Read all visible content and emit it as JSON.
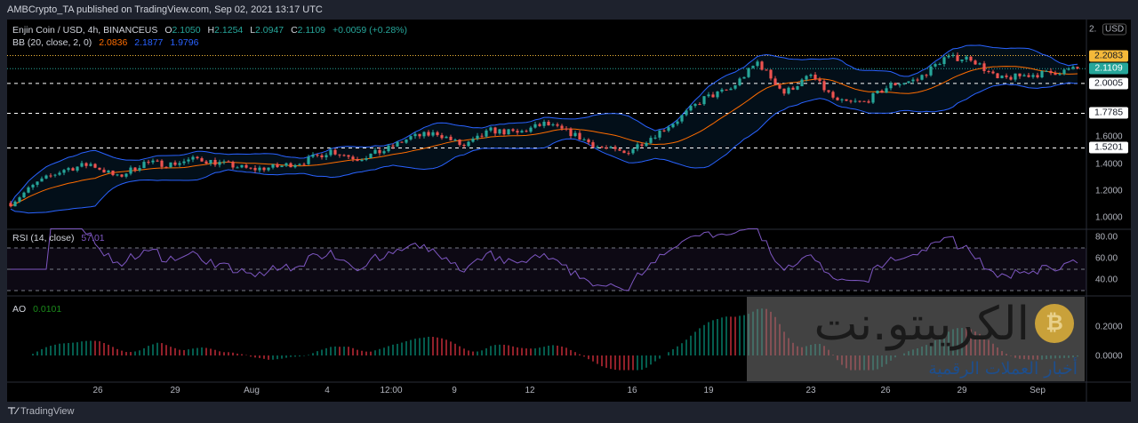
{
  "header": {
    "published": "AMBCrypto_TA published on TradingView.com, Sep 02, 2021 13:17 UTC"
  },
  "symbol": {
    "name": "Enjin Coin / USD, 4h, BINANCEUS",
    "o_label": "O",
    "o": "2.1050",
    "h_label": "H",
    "h": "2.1254",
    "l_label": "L",
    "l": "2.0947",
    "c_label": "C",
    "c": "2.1109",
    "change": "+0.0059 (+0.28%)"
  },
  "bb_legend": {
    "label": "BB (20, close, 2, 0)",
    "basis": "2.0836",
    "upper": "2.1877",
    "lower": "1.9796"
  },
  "rsi_legend": {
    "label": "RSI (14, close)",
    "value": "57.01"
  },
  "ao_legend": {
    "label": "AO",
    "value": "0.0101"
  },
  "price_axis": {
    "currency": "USD",
    "ticks": [
      "1.0000",
      "1.2000",
      "1.4000",
      "1.6000"
    ],
    "tick_values": [
      1.0,
      1.2,
      1.4,
      1.6
    ],
    "top_partial": "2."
  },
  "price_tags": [
    {
      "value": "2.2083",
      "price": 2.2083,
      "bg": "#f5b93a",
      "fg": "#131722",
      "line": "dotted-orange"
    },
    {
      "value": "2.1109",
      "price": 2.1109,
      "bg": "#26a69a",
      "fg": "#ffffff",
      "line": "dotted-teal"
    },
    {
      "value": "2.0005",
      "price": 2.0005,
      "bg": "#ffffff",
      "fg": "#131722",
      "line": "dashed-white"
    },
    {
      "value": "1.7785",
      "price": 1.7785,
      "bg": "#ffffff",
      "fg": "#131722",
      "line": "dashed-white"
    },
    {
      "value": "1.5201",
      "price": 1.5201,
      "bg": "#ffffff",
      "fg": "#131722",
      "line": "dashed-white"
    }
  ],
  "rsi_axis": {
    "ticks": [
      "80.00",
      "60.00",
      "40.00"
    ],
    "tick_values": [
      80,
      60,
      40
    ]
  },
  "ao_axis": {
    "ticks": [
      "0.2000",
      "0.0000"
    ],
    "tick_values": [
      0.2,
      0.0
    ]
  },
  "time_axis": {
    "labels": [
      "26",
      "29",
      "Aug",
      "4",
      "12:00",
      "9",
      "12",
      "16",
      "19",
      "23",
      "26",
      "29",
      "Sep"
    ]
  },
  "footer": {
    "brand": "TradingView"
  },
  "watermark": {
    "title": "الكريبتو.نت",
    "subtitle": "أخبار العملات الرقمية"
  },
  "colors": {
    "up": "#26a69a",
    "down": "#ef5350",
    "bb_band": "#2962ff",
    "bb_basis": "#ff6d00",
    "rsi": "#7e57c2",
    "ao_up": "#089981",
    "ao_down": "#f23645"
  },
  "chart_data": {
    "type": "candlestick",
    "interval": "4h",
    "ylim": [
      1.0,
      2.3
    ],
    "closes_approx": [
      1.11,
      1.26,
      1.36,
      1.4,
      1.3,
      1.41,
      1.4,
      1.44,
      1.4,
      1.36,
      1.38,
      1.42,
      1.5,
      1.44,
      1.5,
      1.6,
      1.63,
      1.53,
      1.65,
      1.63,
      1.7,
      1.63,
      1.53,
      1.48,
      1.6,
      1.73,
      1.89,
      1.96,
      2.16,
      1.93,
      2.06,
      1.86,
      1.86,
      1.99,
      2.03,
      2.19,
      2.19,
      2.03,
      2.06,
      2.08,
      2.1109
    ],
    "indicators": [
      "BB (20, close, 2, 0)",
      "RSI (14, close)",
      "AO"
    ],
    "rsi_levels": [
      70,
      50,
      30
    ]
  }
}
